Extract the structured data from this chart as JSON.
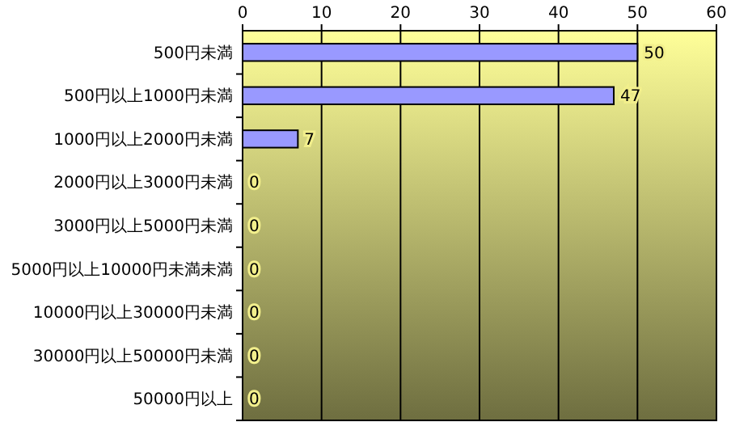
{
  "chart_data": {
    "type": "bar",
    "orientation": "horizontal",
    "categories": [
      "500円未満",
      "500円以上1000円未満",
      "1000円以上2000円未満",
      "2000円以上3000円未満",
      "3000円以上5000円未満",
      "5000円以上10000円未満未満",
      "10000円以上30000円未満",
      "30000円以上50000円未満",
      "50000円以上"
    ],
    "values": [
      50,
      47,
      7,
      0,
      0,
      0,
      0,
      0,
      0
    ],
    "color": "#9999ff",
    "xlim": [
      0,
      60
    ],
    "xticks": [
      0,
      10,
      20,
      30,
      40,
      50,
      60
    ],
    "grid": "x",
    "data_labels": true
  }
}
